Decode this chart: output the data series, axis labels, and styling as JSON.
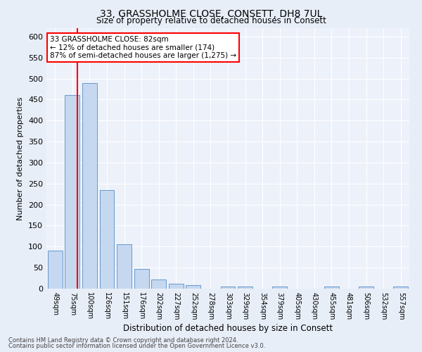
{
  "title1": "33, GRASSHOLME CLOSE, CONSETT, DH8 7UL",
  "title2": "Size of property relative to detached houses in Consett",
  "xlabel": "Distribution of detached houses by size in Consett",
  "ylabel": "Number of detached properties",
  "bar_labels": [
    "49sqm",
    "75sqm",
    "100sqm",
    "126sqm",
    "151sqm",
    "176sqm",
    "202sqm",
    "227sqm",
    "252sqm",
    "278sqm",
    "303sqm",
    "329sqm",
    "354sqm",
    "379sqm",
    "405sqm",
    "430sqm",
    "455sqm",
    "481sqm",
    "506sqm",
    "532sqm",
    "557sqm"
  ],
  "bar_values": [
    90,
    460,
    490,
    235,
    105,
    47,
    22,
    12,
    8,
    0,
    5,
    5,
    0,
    5,
    0,
    0,
    5,
    0,
    5,
    0,
    5
  ],
  "bar_color": "#c5d8f0",
  "bar_edge_color": "#6699cc",
  "red_line_x": 1.28,
  "annotation_text": "33 GRASSHOLME CLOSE: 82sqm\n← 12% of detached houses are smaller (174)\n87% of semi-detached houses are larger (1,275) →",
  "annotation_box_color": "white",
  "annotation_box_edge": "red",
  "footnote1": "Contains HM Land Registry data © Crown copyright and database right 2024.",
  "footnote2": "Contains public sector information licensed under the Open Government Licence v3.0.",
  "ylim": [
    0,
    620
  ],
  "yticks": [
    0,
    50,
    100,
    150,
    200,
    250,
    300,
    350,
    400,
    450,
    500,
    550,
    600
  ],
  "bg_color": "#e8eef8",
  "plot_bg_color": "#edf1fa"
}
